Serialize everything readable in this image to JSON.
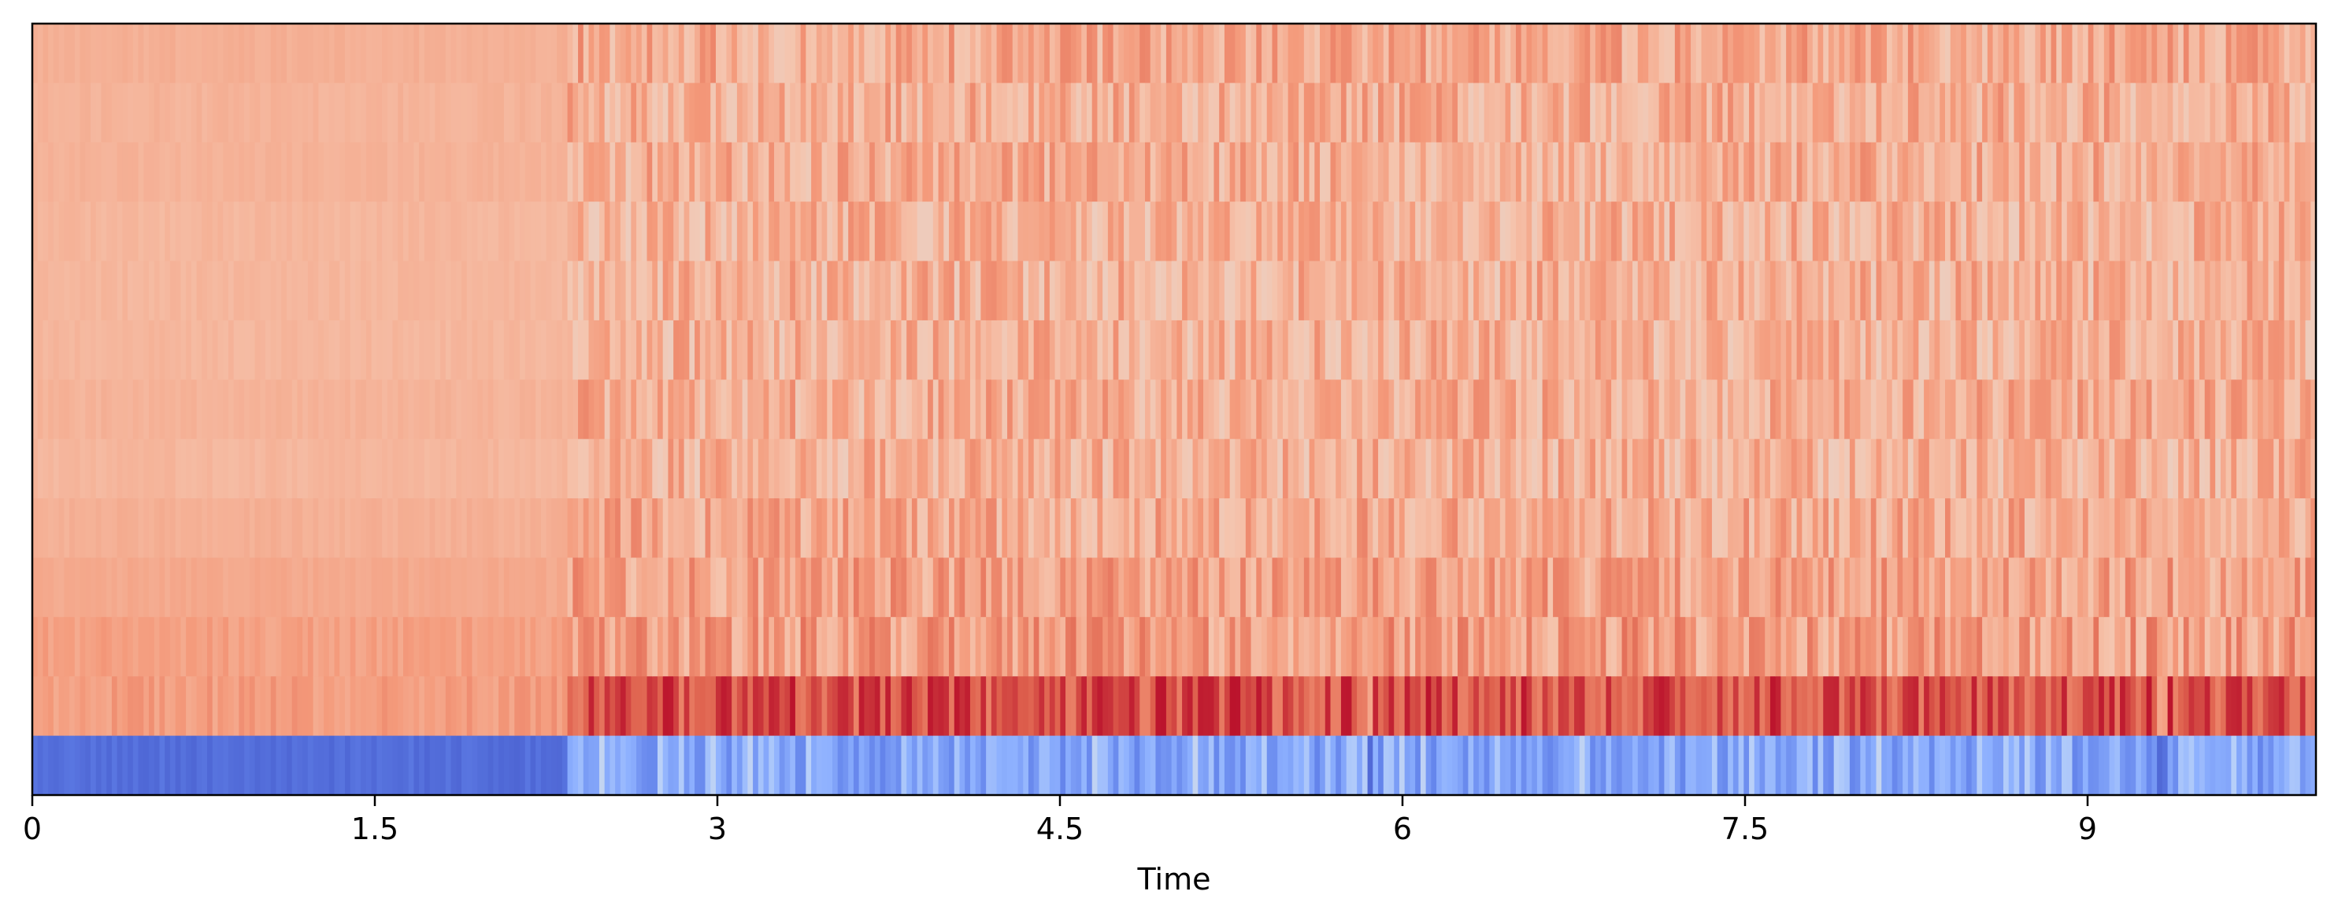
{
  "chart_data": {
    "type": "heatmap",
    "title": "",
    "xlabel": "Time",
    "ylabel": "",
    "xlim": [
      0,
      10.0
    ],
    "x_ticks": [
      0,
      1.5,
      3,
      4.5,
      6,
      7.5,
      9
    ],
    "x_tick_labels": [
      "0",
      "1.5",
      "3",
      "4.5",
      "6",
      "7.5",
      "9"
    ],
    "n_coefficients": 13,
    "n_frames": 431,
    "colormap": "coolwarm",
    "colorbar": false,
    "grid": false,
    "approx_coefficient_levels_by_row_from_top": [
      0.68,
      0.67,
      0.67,
      0.66,
      0.66,
      0.66,
      0.67,
      0.66,
      0.68,
      0.7,
      0.76,
      0.86,
      0.12
    ],
    "silent_segments_seconds": [
      [
        0,
        2.35
      ],
      [
        5.85,
        5.87
      ],
      [
        9.3,
        9.35
      ]
    ],
    "notes_visible": "High-energy first coefficient (bottom row, blue) contrasting with reddish upper coefficients"
  },
  "colors": {
    "axis": "#000000",
    "background": "#ffffff"
  }
}
